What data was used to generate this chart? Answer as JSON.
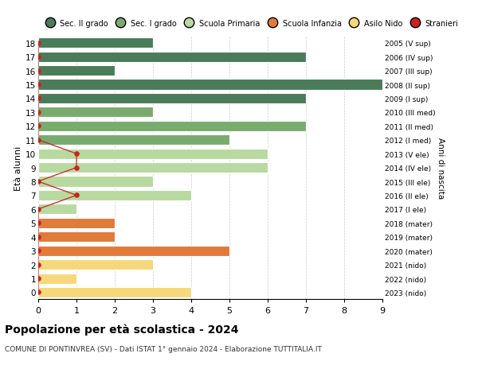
{
  "ages": [
    18,
    17,
    16,
    15,
    14,
    13,
    12,
    11,
    10,
    9,
    8,
    7,
    6,
    5,
    4,
    3,
    2,
    1,
    0
  ],
  "right_labels": [
    "2005 (V sup)",
    "2006 (IV sup)",
    "2007 (III sup)",
    "2008 (II sup)",
    "2009 (I sup)",
    "2010 (III med)",
    "2011 (II med)",
    "2012 (I med)",
    "2013 (V ele)",
    "2014 (IV ele)",
    "2015 (III ele)",
    "2016 (II ele)",
    "2017 (I ele)",
    "2018 (mater)",
    "2019 (mater)",
    "2020 (mater)",
    "2021 (nido)",
    "2022 (nido)",
    "2023 (nido)"
  ],
  "bar_values": [
    3,
    7,
    2,
    9,
    7,
    3,
    7,
    5,
    6,
    6,
    3,
    4,
    1,
    2,
    2,
    5,
    3,
    1,
    4
  ],
  "bar_colors": [
    "#4a7c59",
    "#4a7c59",
    "#4a7c59",
    "#4a7c59",
    "#4a7c59",
    "#7aab6e",
    "#7aab6e",
    "#7aab6e",
    "#b8d9a0",
    "#b8d9a0",
    "#b8d9a0",
    "#b8d9a0",
    "#b8d9a0",
    "#e07b3a",
    "#e07b3a",
    "#e07b3a",
    "#f5d87a",
    "#f5d87a",
    "#f5d87a"
  ],
  "stranieri_x": [
    0,
    0,
    0,
    0,
    0,
    0,
    0,
    0,
    1,
    1,
    0,
    1,
    0,
    0,
    0,
    0,
    0,
    0,
    0
  ],
  "legend_labels": [
    "Sec. II grado",
    "Sec. I grado",
    "Scuola Primaria",
    "Scuola Infanzia",
    "Asilo Nido",
    "Stranieri"
  ],
  "legend_colors": [
    "#4a7c59",
    "#7aab6e",
    "#b8d9a0",
    "#e07b3a",
    "#f5d87a",
    "#cc2222"
  ],
  "title": "Popolazione per età scolastica - 2024",
  "subtitle": "COMUNE DI PONTINVREA (SV) - Dati ISTAT 1° gennaio 2024 - Elaborazione TUTTITALIA.IT",
  "ylabel": "Età alunni",
  "right_ylabel": "Anni di nascita",
  "xlim": [
    0,
    9
  ],
  "background_color": "#ffffff",
  "grid_color": "#cccccc"
}
